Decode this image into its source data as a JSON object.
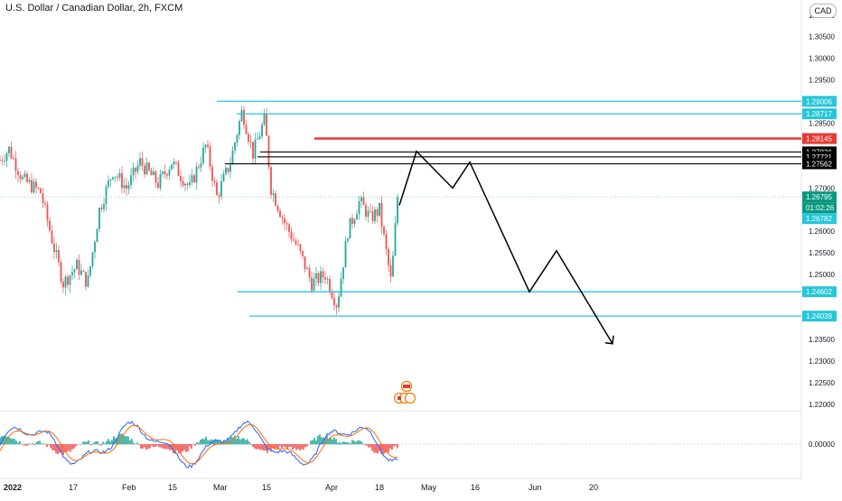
{
  "header": {
    "title": "U.S. Dollar / Canadian Dollar, 2h, FXCM",
    "currency_label": "CAD"
  },
  "colors": {
    "up": "#26a69a",
    "down": "#ef5350",
    "support_line": "#26c6da",
    "resistance_line": "#e53935",
    "black_line": "#000000",
    "axis_text": "#131722"
  },
  "chart_data": [
    {
      "type": "candlestick",
      "title": "U.S. Dollar / Canadian Dollar, 2h, FXCM",
      "x_axis": {
        "tick_labels": [
          "2022",
          "17",
          "Feb",
          "15",
          "Mar",
          "15",
          "Apr",
          "18",
          "May",
          "16",
          "Jun",
          "20"
        ]
      },
      "y_axis": {
        "range": [
          1.2185,
          1.3135
        ],
        "tick_labels": [
          "1.31000",
          "1.30500",
          "1.30000",
          "1.29500",
          "1.28500",
          "1.27000",
          "1.26500",
          "1.26000",
          "1.25500",
          "1.25000",
          "1.23500",
          "1.23000",
          "1.22500",
          "1.22000"
        ],
        "tick_values": [
          1.31,
          1.305,
          1.3,
          1.295,
          1.285,
          1.27,
          1.265,
          1.26,
          1.255,
          1.25,
          1.235,
          1.23,
          1.225,
          1.22
        ]
      },
      "series": [
        {
          "kind": "ohlc",
          "key_points": [
            {
              "x": 0,
              "close": 1.2765
            },
            {
              "x": 10,
              "close": 1.279
            },
            {
              "x": 25,
              "close": 1.272
            },
            {
              "x": 45,
              "close": 1.269
            },
            {
              "x": 60,
              "close": 1.256
            },
            {
              "x": 70,
              "close": 1.248
            },
            {
              "x": 85,
              "close": 1.252
            },
            {
              "x": 97,
              "close": 1.248
            },
            {
              "x": 110,
              "close": 1.265
            },
            {
              "x": 125,
              "close": 1.274
            },
            {
              "x": 140,
              "close": 1.27
            },
            {
              "x": 155,
              "close": 1.276
            },
            {
              "x": 175,
              "close": 1.271
            },
            {
              "x": 190,
              "close": 1.276
            },
            {
              "x": 210,
              "close": 1.27
            },
            {
              "x": 228,
              "close": 1.28
            },
            {
              "x": 240,
              "close": 1.268
            },
            {
              "x": 255,
              "close": 1.276
            },
            {
              "x": 268,
              "close": 1.288
            },
            {
              "x": 280,
              "close": 1.278
            },
            {
              "x": 293,
              "close": 1.286
            },
            {
              "x": 300,
              "close": 1.27
            },
            {
              "x": 315,
              "close": 1.262
            },
            {
              "x": 330,
              "close": 1.256
            },
            {
              "x": 345,
              "close": 1.248
            },
            {
              "x": 360,
              "close": 1.25
            },
            {
              "x": 373,
              "close": 1.243
            },
            {
              "x": 385,
              "close": 1.26
            },
            {
              "x": 398,
              "close": 1.267
            },
            {
              "x": 410,
              "close": 1.263
            },
            {
              "x": 420,
              "close": 1.265
            },
            {
              "x": 433,
              "close": 1.248
            },
            {
              "x": 440,
              "close": 1.268
            }
          ]
        }
      ],
      "horizontal_levels": [
        {
          "price_label": "1.29006",
          "value": 1.29006,
          "kind": "support"
        },
        {
          "price_label": "1.28717",
          "value": 1.28717,
          "kind": "support"
        },
        {
          "price_label": "1.28145",
          "value": 1.28145,
          "kind": "resistance"
        },
        {
          "price_label": "1.27836",
          "value": 1.27836,
          "kind": "black"
        },
        {
          "price_label": "1.27721",
          "value": 1.27721,
          "kind": "black"
        },
        {
          "price_label": "1.27562",
          "value": 1.27562,
          "kind": "black"
        },
        {
          "price_label": "1.26795",
          "value": 1.26795,
          "kind": "current"
        },
        {
          "price_label": "1.24602",
          "value": 1.24602,
          "kind": "support"
        },
        {
          "price_label": "1.24039",
          "value": 1.24039,
          "kind": "support"
        }
      ],
      "current_price": {
        "value": 1.26795,
        "label": "1.26795",
        "countdown": "01:02:26",
        "bid_label": "1.26782"
      },
      "projection_path": [
        {
          "x": 442,
          "price": 1.266
        },
        {
          "x": 461,
          "price": 1.2785
        },
        {
          "x": 501,
          "price": 1.27
        },
        {
          "x": 520,
          "price": 1.276
        },
        {
          "x": 586,
          "price": 1.246
        },
        {
          "x": 616,
          "price": 1.2555
        },
        {
          "x": 678,
          "price": 1.234
        }
      ],
      "oscillator": {
        "zero_label": "0.00000"
      }
    }
  ]
}
